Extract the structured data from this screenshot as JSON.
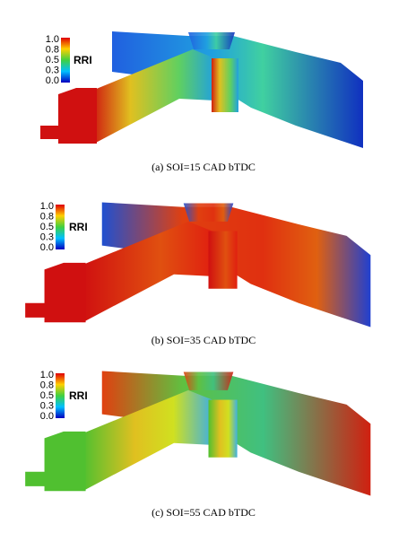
{
  "panels": [
    {
      "colorbar": {
        "label": "RRI",
        "ticks": [
          "1.0",
          "0.8",
          "0.5",
          "0.3",
          "0.0"
        ]
      },
      "caption": "(a) SOI=15 CAD bTDC"
    },
    {
      "colorbar": {
        "label": "RRI",
        "ticks": [
          "1.0",
          "0.8",
          "0.5",
          "0.3",
          "0.0"
        ]
      },
      "caption": "(b) SOI=35 CAD bTDC"
    },
    {
      "colorbar": {
        "label": "RRI",
        "ticks": [
          "1.0",
          "0.8",
          "0.5",
          "0.3",
          "0.0"
        ]
      },
      "caption": "(c) SOI=55 CAD bTDC"
    }
  ]
}
